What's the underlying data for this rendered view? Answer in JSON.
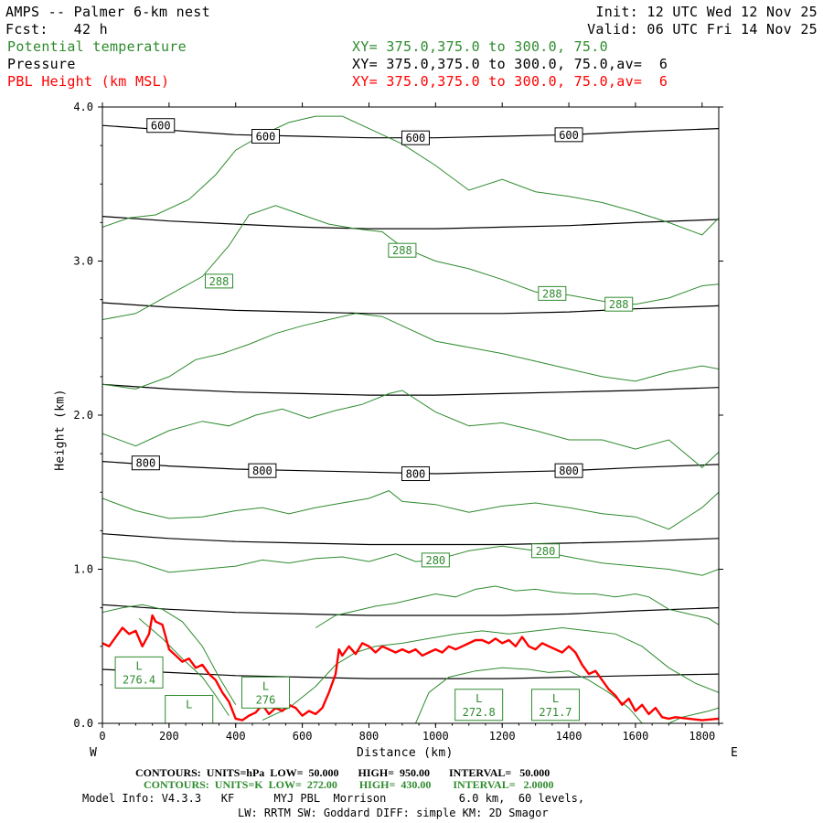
{
  "header": {
    "title_left": "AMPS -- Palmer 6-km nest",
    "fcst_left": "Fcst:   42 h",
    "init_right": "Init: 12 UTC Wed 12 Nov 25",
    "valid_right": "Valid: 06 UTC Fri 14 Nov 25",
    "field1_name": "Potential temperature",
    "field1_xy": "XY= 375.0,375.0 to 300.0, 75.0",
    "field2_name": "Pressure",
    "field2_xy": "XY= 375.0,375.0 to 300.0, 75.0,av=  6",
    "field3_name": "PBL Height (km MSL)",
    "field3_xy": "XY= 375.0,375.0 to 300.0, 75.0,av=  6"
  },
  "footer": {
    "pressure_contours": "CONTOURS:  UNITS=hPa  LOW=  50.000       HIGH=  950.00       INTERVAL=   50.000",
    "theta_contours": "CONTOURS:  UNITS=K  LOW=  272.00        HIGH=  430.00        INTERVAL=   2.0000",
    "model_info": "Model Info: V4.3.3   KF      MYJ PBL  Morrison           6.0 km,  60 levels,",
    "model_info2": "LW: RRTM SW: Goddard DIFF: simple KM: 2D Smagor"
  },
  "colors": {
    "pressure": "#000000",
    "theta": "#2e8b2e",
    "pbl": "#ff0000",
    "axis": "#000000"
  },
  "chart_data": {
    "type": "line",
    "title": "AMPS -- Palmer 6-km nest",
    "xlabel": "Distance (km)",
    "ylabel": "Height (km)",
    "xlim": [
      0,
      1850
    ],
    "ylim": [
      0,
      4.0
    ],
    "x_ticks": [
      "0",
      "200",
      "400",
      "600",
      "800",
      "1000",
      "1200",
      "1400",
      "1600",
      "1800"
    ],
    "y_ticks": [
      "0.0",
      "1.0",
      "2.0",
      "3.0",
      "4.0"
    ],
    "x_end_labels": {
      "left": "W",
      "right": "E"
    },
    "pressure_contour_labels": [
      {
        "text": "600",
        "x": 175,
        "y": 3.88
      },
      {
        "text": "600",
        "x": 490,
        "y": 3.81
      },
      {
        "text": "600",
        "x": 940,
        "y": 3.8
      },
      {
        "text": "600",
        "x": 1400,
        "y": 3.82
      },
      {
        "text": "800",
        "x": 130,
        "y": 1.69
      },
      {
        "text": "800",
        "x": 480,
        "y": 1.64
      },
      {
        "text": "800",
        "x": 940,
        "y": 1.62
      },
      {
        "text": "800",
        "x": 1400,
        "y": 1.64
      }
    ],
    "theta_contour_labels": [
      {
        "text": "288",
        "x": 350,
        "y": 2.87
      },
      {
        "text": "288",
        "x": 900,
        "y": 3.07
      },
      {
        "text": "288",
        "x": 1350,
        "y": 2.79
      },
      {
        "text": "288",
        "x": 1550,
        "y": 2.72
      },
      {
        "text": "280",
        "x": 1000,
        "y": 1.06
      },
      {
        "text": "280",
        "x": 1330,
        "y": 1.12
      }
    ],
    "low_labels": [
      {
        "text": "L",
        "value": "276.4",
        "x": 110,
        "y": 0.33
      },
      {
        "text": "L",
        "value": "",
        "x": 260,
        "y": 0.08
      },
      {
        "text": "L",
        "value": "276",
        "x": 490,
        "y": 0.2
      },
      {
        "text": "L",
        "value": "272.8",
        "x": 1130,
        "y": 0.12
      },
      {
        "text": "L",
        "value": "271.7",
        "x": 1360,
        "y": 0.12
      }
    ],
    "series": [
      {
        "name": "Pressure",
        "kind": "pressure",
        "lines": [
          {
            "x": [
              0,
              200,
              400,
              600,
              800,
              1000,
              1200,
              1400,
              1600,
              1850
            ],
            "y": [
              3.88,
              3.85,
              3.82,
              3.81,
              3.8,
              3.8,
              3.81,
              3.82,
              3.84,
              3.86
            ]
          },
          {
            "x": [
              0,
              200,
              400,
              600,
              800,
              1000,
              1200,
              1400,
              1600,
              1850
            ],
            "y": [
              3.29,
              3.26,
              3.24,
              3.22,
              3.21,
              3.21,
              3.22,
              3.23,
              3.25,
              3.27
            ]
          },
          {
            "x": [
              0,
              200,
              400,
              600,
              800,
              1000,
              1200,
              1400,
              1600,
              1850
            ],
            "y": [
              2.73,
              2.7,
              2.68,
              2.67,
              2.66,
              2.66,
              2.66,
              2.67,
              2.69,
              2.71
            ]
          },
          {
            "x": [
              0,
              200,
              400,
              600,
              800,
              1000,
              1200,
              1400,
              1600,
              1850
            ],
            "y": [
              2.2,
              2.17,
              2.15,
              2.14,
              2.13,
              2.13,
              2.14,
              2.15,
              2.16,
              2.18
            ]
          },
          {
            "x": [
              0,
              200,
              400,
              600,
              800,
              1000,
              1200,
              1400,
              1600,
              1850
            ],
            "y": [
              1.7,
              1.67,
              1.65,
              1.64,
              1.63,
              1.62,
              1.63,
              1.64,
              1.66,
              1.68
            ]
          },
          {
            "x": [
              0,
              200,
              400,
              600,
              800,
              1000,
              1200,
              1400,
              1600,
              1850
            ],
            "y": [
              1.23,
              1.2,
              1.18,
              1.17,
              1.16,
              1.16,
              1.16,
              1.17,
              1.18,
              1.2
            ]
          },
          {
            "x": [
              0,
              200,
              400,
              600,
              800,
              1000,
              1200,
              1400,
              1600,
              1850
            ],
            "y": [
              0.77,
              0.74,
              0.72,
              0.71,
              0.7,
              0.7,
              0.7,
              0.71,
              0.73,
              0.75
            ]
          },
          {
            "x": [
              0,
              200,
              400,
              600,
              800,
              1000,
              1200,
              1400,
              1600,
              1850
            ],
            "y": [
              0.35,
              0.33,
              0.31,
              0.3,
              0.29,
              0.29,
              0.29,
              0.3,
              0.31,
              0.32
            ]
          }
        ]
      },
      {
        "name": "Potential temperature",
        "kind": "theta",
        "lines": [
          {
            "x": [
              0,
              80,
              160,
              260,
              340,
              400,
              480,
              560,
              640,
              720,
              800,
              900,
              1000,
              1100,
              1200,
              1300,
              1400,
              1500,
              1600,
              1700,
              1800,
              1850
            ],
            "y": [
              3.22,
              3.28,
              3.3,
              3.4,
              3.56,
              3.72,
              3.82,
              3.9,
              3.94,
              3.94,
              3.86,
              3.76,
              3.62,
              3.46,
              3.53,
              3.45,
              3.42,
              3.38,
              3.32,
              3.25,
              3.17,
              3.28
            ]
          },
          {
            "x": [
              0,
              100,
              200,
              300,
              380,
              440,
              520,
              600,
              680,
              760,
              840,
              900,
              1000,
              1100,
              1200,
              1300,
              1400,
              1500,
              1600,
              1700,
              1800,
              1850
            ],
            "y": [
              2.62,
              2.66,
              2.78,
              2.9,
              3.1,
              3.3,
              3.36,
              3.3,
              3.24,
              3.21,
              3.19,
              3.09,
              3.0,
              2.95,
              2.88,
              2.8,
              2.78,
              2.74,
              2.72,
              2.76,
              2.84,
              2.85
            ]
          },
          {
            "x": [
              0,
              100,
              200,
              280,
              360,
              440,
              520,
              600,
              680,
              760,
              840,
              900,
              1000,
              1100,
              1200,
              1300,
              1400,
              1500,
              1600,
              1700,
              1800,
              1850
            ],
            "y": [
              2.2,
              2.17,
              2.25,
              2.36,
              2.4,
              2.46,
              2.53,
              2.58,
              2.62,
              2.66,
              2.64,
              2.58,
              2.48,
              2.44,
              2.4,
              2.35,
              2.3,
              2.25,
              2.22,
              2.28,
              2.32,
              2.3
            ]
          },
          {
            "x": [
              0,
              100,
              200,
              300,
              380,
              460,
              540,
              620,
              700,
              780,
              860,
              900,
              1000,
              1100,
              1200,
              1300,
              1400,
              1500,
              1600,
              1700,
              1800,
              1850
            ],
            "y": [
              1.88,
              1.8,
              1.9,
              1.96,
              1.93,
              2.0,
              2.04,
              1.98,
              2.03,
              2.07,
              2.14,
              2.16,
              2.02,
              1.93,
              1.95,
              1.9,
              1.84,
              1.84,
              1.78,
              1.84,
              1.66,
              1.76
            ]
          },
          {
            "x": [
              0,
              100,
              200,
              300,
              400,
              480,
              560,
              640,
              720,
              800,
              860,
              900,
              1000,
              1100,
              1200,
              1300,
              1400,
              1500,
              1600,
              1700,
              1800,
              1850
            ],
            "y": [
              1.46,
              1.38,
              1.33,
              1.34,
              1.38,
              1.4,
              1.36,
              1.4,
              1.43,
              1.46,
              1.51,
              1.44,
              1.42,
              1.37,
              1.41,
              1.43,
              1.4,
              1.36,
              1.34,
              1.26,
              1.4,
              1.5
            ]
          },
          {
            "x": [
              0,
              100,
              200,
              300,
              400,
              480,
              560,
              640,
              720,
              800,
              880,
              940,
              1000,
              1100,
              1200,
              1300,
              1400,
              1500,
              1600,
              1700,
              1800,
              1850
            ],
            "y": [
              1.08,
              1.05,
              0.98,
              1.0,
              1.02,
              1.06,
              1.04,
              1.07,
              1.08,
              1.05,
              1.1,
              1.05,
              1.06,
              1.12,
              1.15,
              1.12,
              1.08,
              1.04,
              1.02,
              1.0,
              0.96,
              1.0
            ]
          },
          {
            "x": [
              0,
              60,
              120,
              180,
              240,
              300,
              350,
              400
            ],
            "y": [
              0.72,
              0.75,
              0.77,
              0.74,
              0.66,
              0.5,
              0.3,
              0.12
            ]
          },
          {
            "x": [
              640,
              700,
              760,
              820,
              880,
              940,
              1000,
              1060,
              1120,
              1180,
              1240,
              1300,
              1360,
              1420,
              1480,
              1540,
              1600,
              1640,
              1700,
              1760,
              1820,
              1850
            ],
            "y": [
              0.62,
              0.7,
              0.73,
              0.76,
              0.78,
              0.81,
              0.84,
              0.82,
              0.87,
              0.89,
              0.86,
              0.87,
              0.85,
              0.84,
              0.84,
              0.82,
              0.84,
              0.82,
              0.74,
              0.71,
              0.68,
              0.64
            ]
          },
          {
            "x": [
              110,
              180,
              240,
              300,
              340,
              380
            ],
            "y": [
              0.68,
              0.55,
              0.42,
              0.3,
              0.18,
              0.05
            ]
          },
          {
            "x": [
              480,
              560,
              640,
              700,
              760,
              820,
              900,
              980,
              1060,
              1140,
              1220,
              1300,
              1380,
              1460,
              1540,
              1620,
              1700,
              1780,
              1850
            ],
            "y": [
              0.02,
              0.1,
              0.24,
              0.38,
              0.46,
              0.5,
              0.52,
              0.55,
              0.58,
              0.6,
              0.58,
              0.6,
              0.62,
              0.6,
              0.58,
              0.5,
              0.36,
              0.26,
              0.2
            ]
          },
          {
            "x": [
              940,
              980,
              1040,
              1120,
              1200,
              1280,
              1340,
              1400,
              1460,
              1520,
              1580,
              1620
            ],
            "y": [
              0.0,
              0.2,
              0.3,
              0.34,
              0.36,
              0.35,
              0.33,
              0.34,
              0.28,
              0.2,
              0.1,
              0.0
            ]
          },
          {
            "x": [
              1700,
              1740,
              1780,
              1820,
              1850
            ],
            "y": [
              0.0,
              0.04,
              0.06,
              0.08,
              0.1
            ]
          }
        ]
      },
      {
        "name": "PBL Height (km MSL)",
        "kind": "pbl",
        "x": [
          0,
          20,
          40,
          60,
          80,
          100,
          120,
          140,
          150,
          160,
          180,
          200,
          220,
          240,
          260,
          280,
          300,
          320,
          340,
          360,
          380,
          400,
          420,
          440,
          460,
          480,
          500,
          520,
          540,
          560,
          580,
          600,
          620,
          640,
          660,
          680,
          700,
          710,
          720,
          740,
          760,
          780,
          800,
          820,
          840,
          860,
          880,
          900,
          920,
          940,
          960,
          980,
          1000,
          1020,
          1040,
          1060,
          1080,
          1100,
          1120,
          1140,
          1160,
          1180,
          1200,
          1220,
          1240,
          1260,
          1280,
          1300,
          1320,
          1340,
          1360,
          1380,
          1400,
          1420,
          1440,
          1460,
          1480,
          1500,
          1520,
          1540,
          1560,
          1580,
          1600,
          1620,
          1640,
          1660,
          1680,
          1700,
          1720,
          1760,
          1800,
          1850
        ],
        "y": [
          0.52,
          0.5,
          0.56,
          0.62,
          0.58,
          0.6,
          0.5,
          0.58,
          0.7,
          0.66,
          0.64,
          0.48,
          0.44,
          0.4,
          0.42,
          0.36,
          0.38,
          0.32,
          0.28,
          0.2,
          0.14,
          0.03,
          0.02,
          0.05,
          0.07,
          0.12,
          0.06,
          0.1,
          0.08,
          0.12,
          0.1,
          0.05,
          0.08,
          0.06,
          0.1,
          0.2,
          0.32,
          0.48,
          0.44,
          0.5,
          0.45,
          0.52,
          0.5,
          0.46,
          0.5,
          0.48,
          0.46,
          0.48,
          0.46,
          0.48,
          0.44,
          0.46,
          0.48,
          0.46,
          0.5,
          0.48,
          0.5,
          0.52,
          0.54,
          0.54,
          0.52,
          0.55,
          0.52,
          0.54,
          0.5,
          0.56,
          0.5,
          0.48,
          0.52,
          0.5,
          0.48,
          0.46,
          0.5,
          0.46,
          0.38,
          0.32,
          0.34,
          0.28,
          0.22,
          0.18,
          0.12,
          0.16,
          0.08,
          0.12,
          0.06,
          0.1,
          0.04,
          0.03,
          0.04,
          0.03,
          0.02,
          0.03
        ]
      }
    ]
  }
}
